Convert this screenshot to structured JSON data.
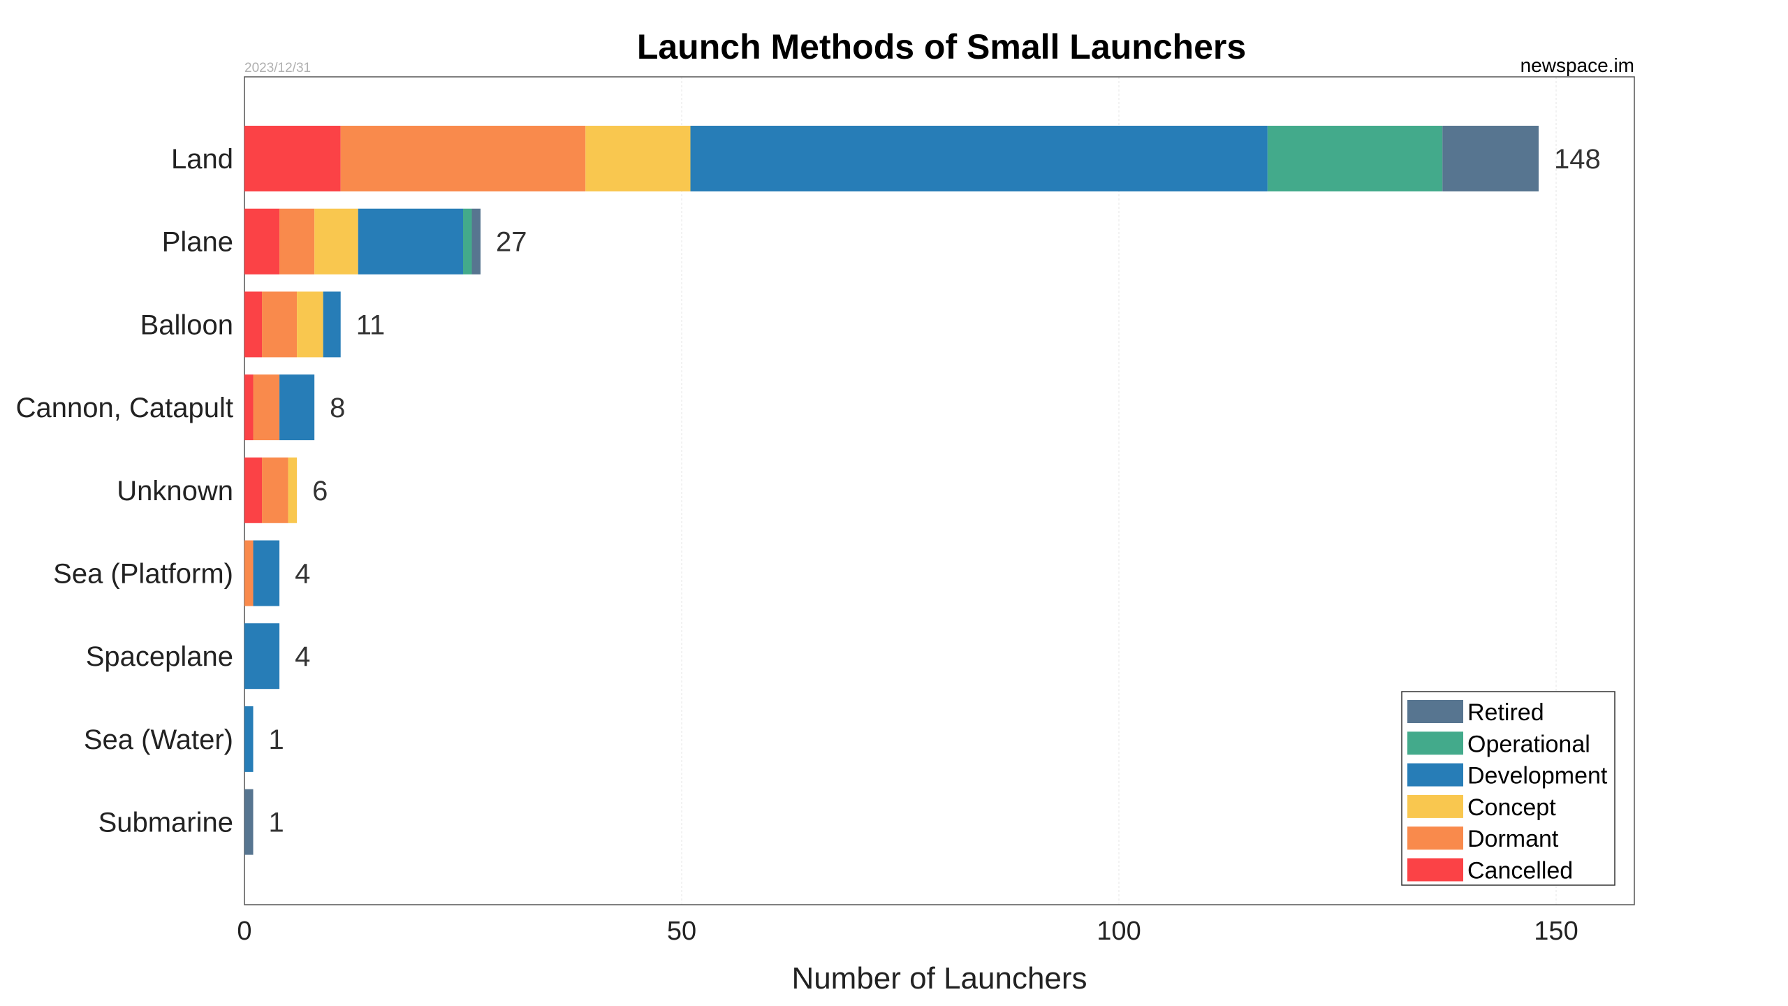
{
  "chart_data": {
    "type": "bar",
    "orientation": "horizontal",
    "stacked": true,
    "title": "Launch Methods of Small Launchers",
    "date": "2023/12/31",
    "source": "newspace.im",
    "xlabel": "Number of Launchers",
    "ylabel": "",
    "xlim": [
      0,
      159
    ],
    "xticks": [
      0,
      50,
      100,
      150
    ],
    "grid": true,
    "legend_position": "bottom-right",
    "categories": [
      "Land",
      "Plane",
      "Balloon",
      "Cannon, Catapult",
      "Unknown",
      "Sea (Platform)",
      "Spaceplane",
      "Sea (Water)",
      "Submarine"
    ],
    "totals": [
      148,
      27,
      11,
      8,
      6,
      4,
      4,
      1,
      1
    ],
    "series": [
      {
        "name": "Cancelled",
        "color": "#fb4246",
        "values": [
          11,
          4,
          2,
          1,
          2,
          0,
          0,
          0,
          0
        ]
      },
      {
        "name": "Dormant",
        "color": "#f98a4c",
        "values": [
          28,
          4,
          4,
          3,
          3,
          1,
          0,
          0,
          0
        ]
      },
      {
        "name": "Concept",
        "color": "#f9c74f",
        "values": [
          12,
          5,
          3,
          0,
          1,
          0,
          0,
          0,
          0
        ]
      },
      {
        "name": "Development",
        "color": "#277db7",
        "values": [
          66,
          12,
          2,
          4,
          0,
          3,
          4,
          1,
          0
        ]
      },
      {
        "name": "Operational",
        "color": "#43aa8b",
        "values": [
          20,
          1,
          0,
          0,
          0,
          0,
          0,
          0,
          0
        ]
      },
      {
        "name": "Retired",
        "color": "#577590",
        "values": [
          11,
          1,
          0,
          0,
          0,
          0,
          0,
          0,
          1
        ]
      }
    ],
    "legend_order": [
      "Retired",
      "Operational",
      "Development",
      "Concept",
      "Dormant",
      "Cancelled"
    ]
  }
}
